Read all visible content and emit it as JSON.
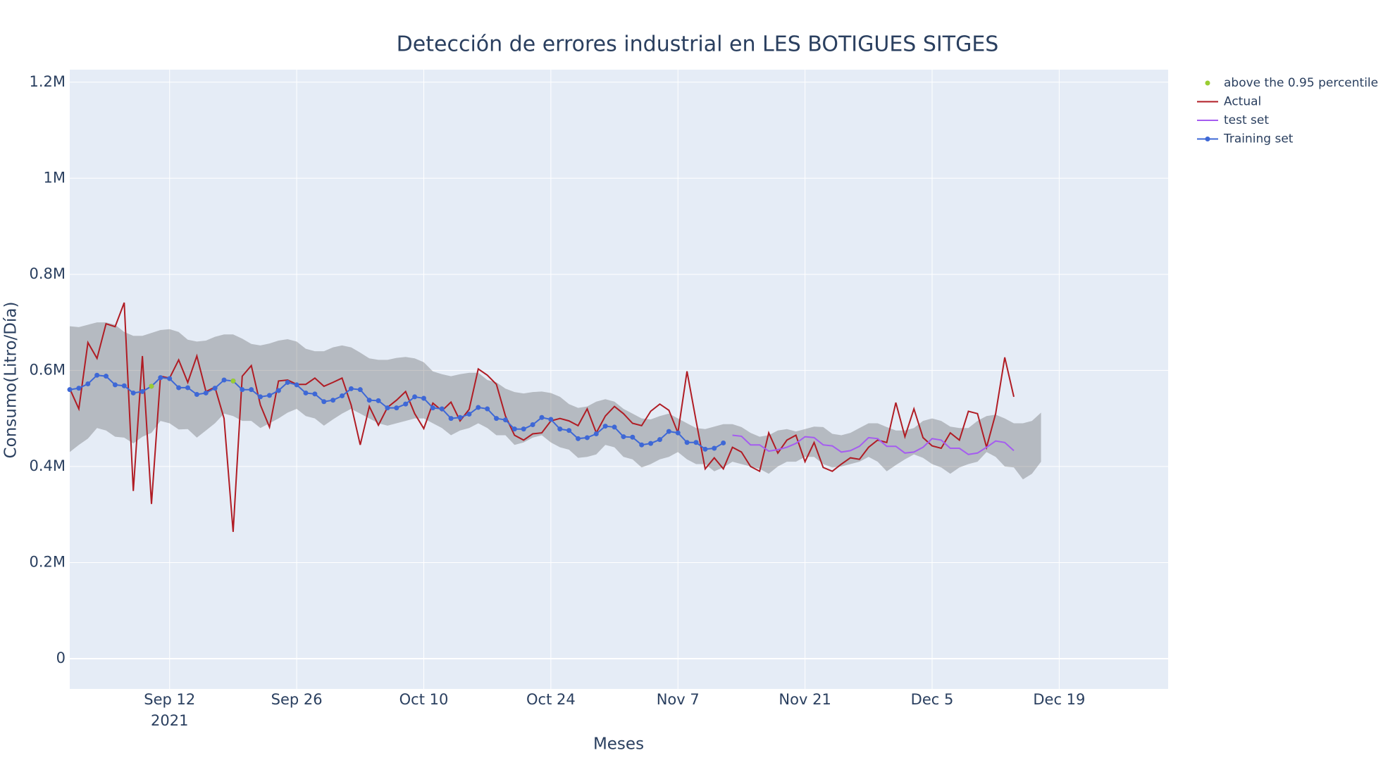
{
  "chart_data": {
    "type": "line",
    "title": "Detección de errores industrial en LES BOTIGUES SITGES",
    "x_label": "Meses",
    "y_label": "Consumo(Litro/Día)",
    "xlim": [
      "2021-09-01",
      "2021-12-31"
    ],
    "xticks": [
      {
        "value": "2021-09-12",
        "label": "Sep 12\n2021"
      },
      {
        "value": "2021-09-26",
        "label": "Sep 26"
      },
      {
        "value": "2021-10-10",
        "label": "Oct 10"
      },
      {
        "value": "2021-10-24",
        "label": "Oct 24"
      },
      {
        "value": "2021-11-07",
        "label": "Nov 7"
      },
      {
        "value": "2021-11-21",
        "label": "Nov 21"
      },
      {
        "value": "2021-12-05",
        "label": "Dec 5"
      },
      {
        "value": "2021-12-19",
        "label": "Dec 19"
      }
    ],
    "ylim": [
      -63000,
      1226000
    ],
    "yticks": [
      0,
      {
        "value": 200000,
        "label": "0.2M"
      },
      {
        "value": 400000,
        "label": "0.4M"
      },
      {
        "value": 600000,
        "label": "0.6M"
      },
      {
        "value": 800000,
        "label": "0.8M"
      },
      {
        "value": 1000000,
        "label": "1M"
      },
      {
        "value": 1200000,
        "label": "1.2M"
      }
    ],
    "grid": true,
    "legend_position": "outside-right",
    "x": [
      "2021-09-01",
      "2021-09-02",
      "2021-09-03",
      "2021-09-04",
      "2021-09-05",
      "2021-09-06",
      "2021-09-07",
      "2021-09-08",
      "2021-09-09",
      "2021-09-10",
      "2021-09-11",
      "2021-09-12",
      "2021-09-13",
      "2021-09-14",
      "2021-09-15",
      "2021-09-16",
      "2021-09-17",
      "2021-09-18",
      "2021-09-19",
      "2021-09-20",
      "2021-09-21",
      "2021-09-22",
      "2021-09-23",
      "2021-09-24",
      "2021-09-25",
      "2021-09-26",
      "2021-09-27",
      "2021-09-28",
      "2021-09-29",
      "2021-09-30",
      "2021-10-01",
      "2021-10-02",
      "2021-10-03",
      "2021-10-04",
      "2021-10-05",
      "2021-10-06",
      "2021-10-07",
      "2021-10-08",
      "2021-10-09",
      "2021-10-10",
      "2021-10-11",
      "2021-10-12",
      "2021-10-13",
      "2021-10-14",
      "2021-10-15",
      "2021-10-16",
      "2021-10-17",
      "2021-10-18",
      "2021-10-19",
      "2021-10-20",
      "2021-10-21",
      "2021-10-22",
      "2021-10-23",
      "2021-10-24",
      "2021-10-25",
      "2021-10-26",
      "2021-10-27",
      "2021-10-28",
      "2021-10-29",
      "2021-10-30",
      "2021-10-31",
      "2021-11-01",
      "2021-11-02",
      "2021-11-03",
      "2021-11-04",
      "2021-11-05",
      "2021-11-06",
      "2021-11-07",
      "2021-11-08",
      "2021-11-09",
      "2021-11-10",
      "2021-11-11",
      "2021-11-12",
      "2021-11-13",
      "2021-11-14",
      "2021-11-15",
      "2021-11-16",
      "2021-11-17",
      "2021-11-18",
      "2021-11-19",
      "2021-11-20",
      "2021-11-21",
      "2021-11-22",
      "2021-11-23",
      "2021-11-24",
      "2021-11-25",
      "2021-11-26",
      "2021-11-27",
      "2021-11-28",
      "2021-11-29",
      "2021-11-30",
      "2021-12-01",
      "2021-12-02",
      "2021-12-03",
      "2021-12-04",
      "2021-12-05",
      "2021-12-06",
      "2021-12-07",
      "2021-12-08",
      "2021-12-09",
      "2021-12-10",
      "2021-12-11",
      "2021-12-12",
      "2021-12-13",
      "2021-12-14",
      "2021-12-15",
      "2021-12-16",
      "2021-12-17"
    ],
    "band": {
      "color": "rgba(68,68,68,0.3)",
      "upper": [
        692000,
        690000,
        695000,
        700000,
        700000,
        695000,
        680000,
        672000,
        672000,
        678000,
        684000,
        686000,
        680000,
        664000,
        660000,
        662000,
        670000,
        675000,
        675000,
        666000,
        655000,
        652000,
        656000,
        662000,
        665000,
        660000,
        645000,
        640000,
        640000,
        648000,
        652000,
        648000,
        637000,
        625000,
        622000,
        622000,
        626000,
        628000,
        625000,
        617000,
        598000,
        592000,
        588000,
        592000,
        595000,
        595000,
        580000,
        575000,
        562000,
        555000,
        552000,
        555000,
        556000,
        553000,
        545000,
        530000,
        522000,
        525000,
        535000,
        540000,
        535000,
        520000,
        510000,
        500000,
        498000,
        505000,
        510000,
        500000,
        490000,
        480000,
        478000,
        483000,
        488000,
        488000,
        482000,
        470000,
        462000,
        465000,
        475000,
        478000,
        473000,
        478000,
        483000,
        482000,
        468000,
        465000,
        470000,
        480000,
        490000,
        490000,
        482000,
        475000,
        475000,
        480000,
        495000,
        500000,
        495000,
        483000,
        480000,
        480000,
        495000,
        505000,
        508000,
        500000,
        490000,
        490000,
        495000,
        512000
      ],
      "lower": [
        430000,
        445000,
        458000,
        480000,
        475000,
        462000,
        460000,
        448000,
        462000,
        470000,
        495000,
        490000,
        477000,
        478000,
        460000,
        475000,
        490000,
        510000,
        505000,
        495000,
        495000,
        480000,
        490000,
        500000,
        512000,
        520000,
        505000,
        500000,
        485000,
        498000,
        510000,
        520000,
        510000,
        500000,
        490000,
        485000,
        490000,
        495000,
        500000,
        500000,
        490000,
        480000,
        465000,
        475000,
        480000,
        490000,
        480000,
        465000,
        465000,
        445000,
        450000,
        460000,
        465000,
        450000,
        440000,
        435000,
        418000,
        420000,
        425000,
        445000,
        440000,
        420000,
        415000,
        398000,
        405000,
        415000,
        420000,
        430000,
        415000,
        405000,
        405000,
        390000,
        398000,
        410000,
        405000,
        400000,
        395000,
        385000,
        400000,
        410000,
        410000,
        420000,
        420000,
        405000,
        398000,
        400000,
        405000,
        410000,
        420000,
        410000,
        390000,
        403000,
        415000,
        425000,
        418000,
        405000,
        398000,
        385000,
        398000,
        405000,
        410000,
        430000,
        420000,
        400000,
        398000,
        373000,
        385000,
        410000
      ]
    },
    "series": [
      {
        "name": "above the 0.95 percentile",
        "color": "#9acd32",
        "mode": "markers",
        "x": [
          "2021-09-10",
          "2021-09-19"
        ],
        "values": [
          567000,
          578000
        ]
      },
      {
        "name": "Actual",
        "color": "#b01c24",
        "mode": "lines",
        "values": [
          562000,
          520000,
          658000,
          625000,
          697000,
          691000,
          741000,
          349000,
          630000,
          322000,
          588000,
          584000,
          622000,
          575000,
          630000,
          556000,
          565000,
          500000,
          264000,
          588000,
          610000,
          528000,
          482000,
          578000,
          580000,
          571000,
          571000,
          584000,
          567000,
          575000,
          584000,
          528000,
          445000,
          525000,
          486000,
          523000,
          538000,
          556000,
          510000,
          479000,
          532000,
          516000,
          534000,
          495000,
          519000,
          603000,
          590000,
          571000,
          505000,
          465000,
          455000,
          468000,
          470000,
          495000,
          500000,
          495000,
          485000,
          520000,
          470000,
          505000,
          525000,
          510000,
          490000,
          485000,
          515000,
          530000,
          517000,
          470000,
          598000,
          495000,
          395000,
          418000,
          395000,
          440000,
          430000,
          400000,
          390000,
          470000,
          428000,
          455000,
          465000,
          410000,
          450000,
          398000,
          390000,
          405000,
          418000,
          415000,
          440000,
          455000,
          450000,
          533000,
          462000,
          520000,
          460000,
          443000,
          438000,
          470000,
          455000,
          515000,
          510000,
          440000,
          510000,
          627000,
          545000,
          null,
          null,
          null
        ]
      },
      {
        "name": "test set",
        "color": "#a55cf0",
        "mode": "lines",
        "values": [
          null,
          null,
          null,
          null,
          null,
          null,
          null,
          null,
          null,
          null,
          null,
          null,
          null,
          null,
          null,
          null,
          null,
          null,
          null,
          null,
          null,
          null,
          null,
          null,
          null,
          null,
          null,
          null,
          null,
          null,
          null,
          null,
          null,
          null,
          null,
          null,
          null,
          null,
          null,
          null,
          null,
          null,
          null,
          null,
          null,
          null,
          null,
          null,
          null,
          null,
          null,
          null,
          null,
          null,
          null,
          null,
          null,
          null,
          null,
          null,
          null,
          null,
          null,
          null,
          null,
          null,
          null,
          null,
          null,
          null,
          null,
          null,
          null,
          465000,
          463000,
          445000,
          445000,
          432000,
          435000,
          440000,
          448000,
          462000,
          460000,
          445000,
          443000,
          430000,
          433000,
          442000,
          460000,
          458000,
          442000,
          442000,
          428000,
          430000,
          440000,
          458000,
          455000,
          438000,
          438000,
          425000,
          428000,
          440000,
          453000,
          450000,
          433000,
          null,
          null,
          null
        ]
      },
      {
        "name": "Training set",
        "color": "#3e68d6",
        "mode": "lines+markers",
        "values": [
          560000,
          563000,
          572000,
          590000,
          588000,
          570000,
          568000,
          553000,
          556000,
          567000,
          585000,
          583000,
          564000,
          564000,
          550000,
          553000,
          563000,
          580000,
          578000,
          560000,
          560000,
          545000,
          548000,
          558000,
          575000,
          570000,
          553000,
          551000,
          535000,
          538000,
          547000,
          562000,
          560000,
          538000,
          537000,
          522000,
          522000,
          530000,
          545000,
          542000,
          522000,
          520000,
          500000,
          502000,
          509000,
          523000,
          520000,
          500000,
          497000,
          478000,
          478000,
          487000,
          502000,
          498000,
          478000,
          475000,
          458000,
          460000,
          468000,
          484000,
          482000,
          462000,
          461000,
          445000,
          448000,
          456000,
          473000,
          470000,
          450000,
          450000,
          436000,
          438000,
          449000,
          null,
          null,
          null,
          null,
          null,
          null,
          null,
          null,
          null,
          null,
          null,
          null,
          null,
          null,
          null,
          null,
          null,
          null,
          null,
          null,
          null,
          null,
          null,
          null,
          null,
          null,
          null,
          null,
          null,
          null,
          null,
          null,
          null,
          null,
          null
        ]
      }
    ]
  }
}
